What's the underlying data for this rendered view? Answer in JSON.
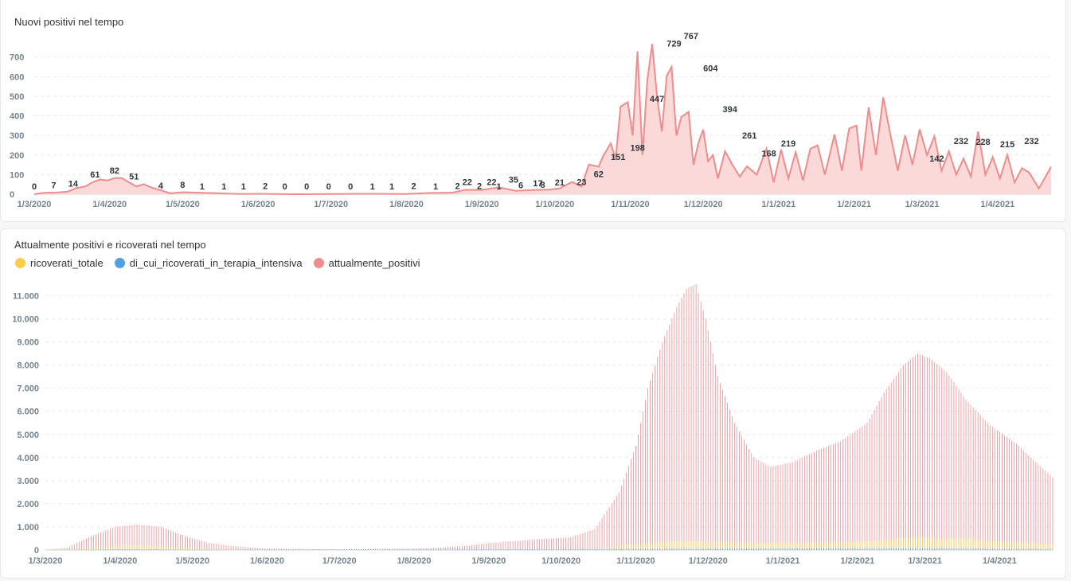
{
  "colors": {
    "positivi": "#ef8c8c",
    "positivi_fill": "#fbd9d9",
    "ricoverati": "#f9cf48",
    "terapia": "#509ee3",
    "grid": "#e6e8eb",
    "axis_text": "#74838f"
  },
  "charts": {
    "nuovi": {
      "title": "Nuovi positivi nel tempo"
    },
    "attuali": {
      "title": "Attualmente positivi e ricoverati nel tempo"
    }
  },
  "chart_data": [
    {
      "type": "area",
      "title": "Nuovi positivi nel tempo",
      "x_ticks": [
        "1/3/2020",
        "1/4/2020",
        "1/5/2020",
        "1/6/2020",
        "1/7/2020",
        "1/8/2020",
        "1/9/2020",
        "1/10/2020",
        "1/11/2020",
        "1/12/2020",
        "1/1/2021",
        "1/2/2021",
        "1/3/2021",
        "1/4/2021"
      ],
      "y_ticks": [
        "0",
        "100",
        "200",
        "300",
        "400",
        "500",
        "600",
        "700"
      ],
      "ylim": [
        0,
        780
      ],
      "x_start": "2020-03-01",
      "x_end": "2021-04-23",
      "series": [
        {
          "name": "nuovi_positivi",
          "points": [
            [
              "2020-03-01",
              0
            ],
            [
              "2020-03-05",
              7
            ],
            [
              "2020-03-10",
              8
            ],
            [
              "2020-03-15",
              14
            ],
            [
              "2020-03-18",
              30
            ],
            [
              "2020-03-22",
              40
            ],
            [
              "2020-03-25",
              61
            ],
            [
              "2020-03-28",
              75
            ],
            [
              "2020-03-31",
              70
            ],
            [
              "2020-04-03",
              82
            ],
            [
              "2020-04-06",
              82
            ],
            [
              "2020-04-09",
              60
            ],
            [
              "2020-04-12",
              40
            ],
            [
              "2020-04-15",
              51
            ],
            [
              "2020-04-18",
              35
            ],
            [
              "2020-04-22",
              20
            ],
            [
              "2020-04-26",
              4
            ],
            [
              "2020-05-01",
              10
            ],
            [
              "2020-05-06",
              8
            ],
            [
              "2020-05-15",
              5
            ],
            [
              "2020-05-24",
              1
            ],
            [
              "2020-06-01",
              2
            ],
            [
              "2020-06-15",
              0
            ],
            [
              "2020-07-01",
              1
            ],
            [
              "2020-07-15",
              2
            ],
            [
              "2020-08-01",
              1
            ],
            [
              "2020-08-10",
              6
            ],
            [
              "2020-08-20",
              8
            ],
            [
              "2020-08-25",
              22
            ],
            [
              "2020-09-01",
              22
            ],
            [
              "2020-09-08",
              35
            ],
            [
              "2020-09-15",
              17
            ],
            [
              "2020-09-22",
              21
            ],
            [
              "2020-09-29",
              23
            ],
            [
              "2020-10-03",
              30
            ],
            [
              "2020-10-08",
              62
            ],
            [
              "2020-10-12",
              40
            ],
            [
              "2020-10-15",
              151
            ],
            [
              "2020-10-19",
              140
            ],
            [
              "2020-10-21",
              198
            ],
            [
              "2020-10-24",
              260
            ],
            [
              "2020-10-26",
              180
            ],
            [
              "2020-10-28",
              447
            ],
            [
              "2020-10-31",
              470
            ],
            [
              "2020-11-02",
              300
            ],
            [
              "2020-11-04",
              729
            ],
            [
              "2020-11-06",
              200
            ],
            [
              "2020-11-08",
              580
            ],
            [
              "2020-11-10",
              767
            ],
            [
              "2020-11-12",
              500
            ],
            [
              "2020-11-14",
              320
            ],
            [
              "2020-11-16",
              604
            ],
            [
              "2020-11-18",
              650
            ],
            [
              "2020-11-20",
              300
            ],
            [
              "2020-11-22",
              394
            ],
            [
              "2020-11-25",
              420
            ],
            [
              "2020-11-27",
              150
            ],
            [
              "2020-11-29",
              261
            ],
            [
              "2020-12-01",
              330
            ],
            [
              "2020-12-03",
              168
            ],
            [
              "2020-12-05",
              200
            ],
            [
              "2020-12-07",
              80
            ],
            [
              "2020-12-10",
              219
            ],
            [
              "2020-12-13",
              150
            ],
            [
              "2020-12-16",
              90
            ],
            [
              "2020-12-19",
              142
            ],
            [
              "2020-12-23",
              100
            ],
            [
              "2020-12-27",
              232
            ],
            [
              "2020-12-30",
              60
            ],
            [
              "2021-01-02",
              228
            ],
            [
              "2021-01-05",
              80
            ],
            [
              "2021-01-08",
              215
            ],
            [
              "2021-01-11",
              70
            ],
            [
              "2021-01-14",
              232
            ],
            [
              "2021-01-17",
              250
            ],
            [
              "2021-01-20",
              100
            ],
            [
              "2021-01-24",
              305
            ],
            [
              "2021-01-27",
              120
            ],
            [
              "2021-01-30",
              335
            ],
            [
              "2021-02-02",
              350
            ],
            [
              "2021-02-04",
              120
            ],
            [
              "2021-02-07",
              443
            ],
            [
              "2021-02-10",
              200
            ],
            [
              "2021-02-13",
              494
            ],
            [
              "2021-02-16",
              300
            ],
            [
              "2021-02-19",
              120
            ],
            [
              "2021-02-22",
              301
            ],
            [
              "2021-02-25",
              150
            ],
            [
              "2021-02-28",
              331
            ],
            [
              "2021-03-03",
              200
            ],
            [
              "2021-03-06",
              295
            ],
            [
              "2021-03-09",
              120
            ],
            [
              "2021-03-12",
              219
            ],
            [
              "2021-03-15",
              100
            ],
            [
              "2021-03-18",
              182
            ],
            [
              "2021-03-21",
              90
            ],
            [
              "2021-03-24",
              320
            ],
            [
              "2021-03-27",
              100
            ],
            [
              "2021-03-30",
              189
            ],
            [
              "2021-04-02",
              80
            ],
            [
              "2021-04-05",
              201
            ],
            [
              "2021-04-08",
              60
            ],
            [
              "2021-04-11",
              133
            ],
            [
              "2021-04-14",
              110
            ],
            [
              "2021-04-18",
              30
            ],
            [
              "2021-04-23",
              140
            ]
          ],
          "labels": [
            [
              "2020-03-01",
              0
            ],
            [
              "2020-03-11",
              7
            ],
            [
              "2020-03-21",
              14
            ],
            [
              "2020-03-31",
              61
            ],
            [
              "2020-04-12",
              82
            ],
            [
              "2020-04-22",
              51
            ],
            [
              "2020-05-03",
              4
            ],
            [
              "2020-05-14",
              8
            ],
            [
              "2020-05-24",
              1
            ],
            [
              "2020-06-03",
              1
            ],
            [
              "2020-06-13",
              1
            ],
            [
              "2020-06-23",
              2
            ],
            [
              "2020-07-03",
              0
            ],
            [
              "2020-07-13",
              0
            ],
            [
              "2020-07-23",
              0
            ],
            [
              "2020-08-02",
              0
            ],
            [
              "2020-08-12",
              1
            ],
            [
              "2020-08-22",
              1
            ],
            [
              "2020-09-01",
              2
            ],
            [
              "2020-09-11",
              1
            ],
            [
              "2020-09-21",
              2
            ],
            [
              "2020-10-01",
              2
            ],
            [
              "2020-10-11",
              1
            ],
            [
              "2020-10-21",
              6
            ],
            [
              "2020-10-31",
              8
            ],
            [
              "2020-09-11",
              22
            ],
            [
              "2020-09-22",
              22
            ],
            [
              "2020-10-02",
              35
            ],
            [
              "2020-10-14",
              17
            ],
            [
              "2020-10-24",
              21
            ],
            [
              "2020-11-03",
              23
            ],
            [
              "2020-11-14",
              62
            ],
            [
              "2020-11-24",
              151
            ],
            [
              "2020-12-04",
              198
            ],
            [
              "2020-12-14",
              447
            ],
            [
              "2020-12-25",
              729
            ],
            [
              "2021-01-05",
              767
            ],
            [
              "2021-01-16",
              604
            ],
            [
              "2021-01-26",
              394
            ],
            [
              "2021-02-05",
              261
            ],
            [
              "2021-02-15",
              168
            ],
            [
              "2021-02-25",
              219
            ],
            [
              "2021-03-07",
              142
            ],
            [
              "2021-03-17",
              232
            ],
            [
              "2021-03-26",
              228
            ],
            [
              "2021-04-05",
              215
            ],
            [
              "2021-04-15",
              232
            ]
          ]
        }
      ]
    },
    {
      "type": "bar",
      "title": "Attualmente positivi e ricoverati nel tempo",
      "x_ticks": [
        "1/3/2020",
        "1/4/2020",
        "1/5/2020",
        "1/6/2020",
        "1/7/2020",
        "1/8/2020",
        "1/9/2020",
        "1/10/2020",
        "1/11/2020",
        "1/12/2020",
        "1/1/2021",
        "1/2/2021",
        "1/3/2021",
        "1/4/2021"
      ],
      "y_ticks": [
        "0",
        "1.000",
        "2.000",
        "3.000",
        "4.000",
        "5.000",
        "6.000",
        "7.000",
        "8.000",
        "9.000",
        "10.000",
        "11.000"
      ],
      "ylim": [
        0,
        11500
      ],
      "legend": [
        "ricoverati_totale",
        "di_cui_ricoverati_in_terapia_intensiva",
        "attualmente_positivi"
      ],
      "series": [
        {
          "name": "attualmente_positivi",
          "points": [
            [
              "2020-03-01",
              0
            ],
            [
              "2020-03-10",
              100
            ],
            [
              "2020-03-20",
              600
            ],
            [
              "2020-03-30",
              1000
            ],
            [
              "2020-04-08",
              1100
            ],
            [
              "2020-04-18",
              1000
            ],
            [
              "2020-04-28",
              600
            ],
            [
              "2020-05-08",
              300
            ],
            [
              "2020-05-20",
              150
            ],
            [
              "2020-06-01",
              60
            ],
            [
              "2020-07-01",
              30
            ],
            [
              "2020-08-01",
              60
            ],
            [
              "2020-08-20",
              150
            ],
            [
              "2020-09-01",
              300
            ],
            [
              "2020-09-20",
              450
            ],
            [
              "2020-10-05",
              550
            ],
            [
              "2020-10-15",
              900
            ],
            [
              "2020-10-25",
              2500
            ],
            [
              "2020-11-01",
              4500
            ],
            [
              "2020-11-06",
              7000
            ],
            [
              "2020-11-12",
              9000
            ],
            [
              "2020-11-18",
              10500
            ],
            [
              "2020-11-22",
              11300
            ],
            [
              "2020-11-26",
              11500
            ],
            [
              "2020-11-30",
              10000
            ],
            [
              "2020-12-05",
              7500
            ],
            [
              "2020-12-12",
              5500
            ],
            [
              "2020-12-20",
              4000
            ],
            [
              "2020-12-27",
              3600
            ],
            [
              "2021-01-05",
              3800
            ],
            [
              "2021-01-15",
              4300
            ],
            [
              "2021-01-25",
              4700
            ],
            [
              "2021-02-05",
              5500
            ],
            [
              "2021-02-12",
              6800
            ],
            [
              "2021-02-20",
              8000
            ],
            [
              "2021-02-26",
              8500
            ],
            [
              "2021-03-03",
              8300
            ],
            [
              "2021-03-10",
              7700
            ],
            [
              "2021-03-18",
              6500
            ],
            [
              "2021-03-28",
              5400
            ],
            [
              "2021-04-08",
              4600
            ],
            [
              "2021-04-16",
              3800
            ],
            [
              "2021-04-23",
              3150
            ]
          ]
        },
        {
          "name": "ricoverati_totale",
          "points": [
            [
              "2020-03-01",
              0
            ],
            [
              "2020-03-20",
              100
            ],
            [
              "2020-04-05",
              200
            ],
            [
              "2020-04-20",
              150
            ],
            [
              "2020-05-10",
              50
            ],
            [
              "2020-06-01",
              10
            ],
            [
              "2020-09-01",
              20
            ],
            [
              "2020-10-15",
              60
            ],
            [
              "2020-11-01",
              250
            ],
            [
              "2020-11-20",
              400
            ],
            [
              "2020-12-10",
              330
            ],
            [
              "2021-01-01",
              300
            ],
            [
              "2021-02-01",
              350
            ],
            [
              "2021-02-25",
              550
            ],
            [
              "2021-03-15",
              500
            ],
            [
              "2021-04-05",
              350
            ],
            [
              "2021-04-23",
              250
            ]
          ]
        },
        {
          "name": "di_cui_ricoverati_in_terapia_intensiva",
          "points": [
            [
              "2020-03-01",
              0
            ],
            [
              "2020-04-05",
              40
            ],
            [
              "2020-05-10",
              10
            ],
            [
              "2020-11-20",
              60
            ],
            [
              "2021-03-01",
              80
            ],
            [
              "2021-04-23",
              40
            ]
          ]
        }
      ]
    }
  ]
}
